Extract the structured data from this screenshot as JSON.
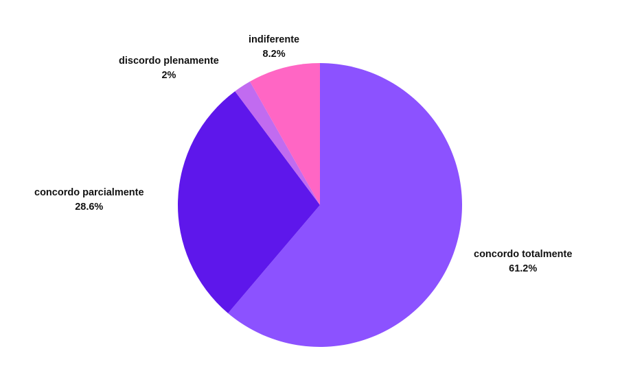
{
  "chart_data": {
    "type": "pie",
    "title": "",
    "start_angle_deg": 0,
    "direction": "clockwise",
    "slices": [
      {
        "label": "concordo totalmente",
        "value": 61.2,
        "value_label": "61.2%",
        "color": "#8c52ff"
      },
      {
        "label": "concordo parcialmente",
        "value": 28.6,
        "value_label": "28.6%",
        "color": "#5e17eb"
      },
      {
        "label": "discordo plenamente",
        "value": 2,
        "value_label": "2%",
        "color": "#c16bf0"
      },
      {
        "label": "indiferente",
        "value": 8.2,
        "value_label": "8.2%",
        "color": "#ff66c4"
      }
    ]
  }
}
